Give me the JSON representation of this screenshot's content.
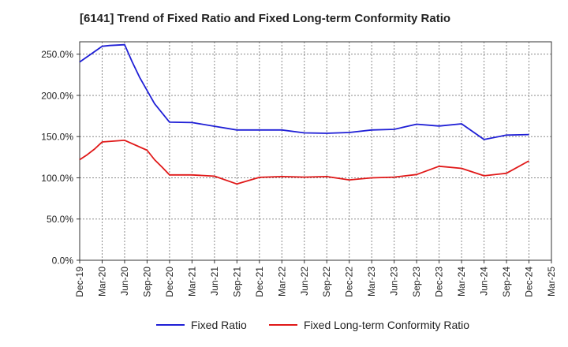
{
  "title": "[6141]  Trend of Fixed Ratio and Fixed Long-term Conformity Ratio",
  "chart_data": {
    "type": "line",
    "title": "[6141]  Trend of Fixed Ratio and Fixed Long-term Conformity Ratio",
    "xlabel": "",
    "ylabel": "",
    "x": [
      "Dec-19",
      "Mar-20",
      "Jun-20",
      "Sep-20",
      "Dec-20",
      "Mar-21",
      "Jun-21",
      "Sep-21",
      "Dec-21",
      "Mar-22",
      "Jun-22",
      "Sep-22",
      "Dec-22",
      "Mar-23",
      "Jun-23",
      "Sep-23",
      "Dec-23",
      "Mar-24",
      "Jun-24",
      "Sep-24",
      "Dec-24",
      "Mar-25"
    ],
    "x_tick_labels": [
      "Dec-19",
      "Mar-20",
      "Jun-20",
      "Sep-20",
      "Dec-20",
      "Mar-21",
      "Jun-21",
      "Sep-21",
      "Dec-21",
      "Mar-22",
      "Jun-22",
      "Sep-22",
      "Dec-22",
      "Mar-23",
      "Jun-23",
      "Sep-23",
      "Dec-23",
      "Mar-24",
      "Jun-24",
      "Sep-24",
      "Dec-24",
      "Mar-25"
    ],
    "y_tick_labels": [
      "0.0%",
      "50.0%",
      "100.0%",
      "150.0%",
      "200.0%",
      "250.0%"
    ],
    "ylim": [
      0,
      265
    ],
    "y_ticks": [
      0,
      50,
      100,
      150,
      200,
      250
    ],
    "grid": true,
    "legend_position": "bottom",
    "series": [
      {
        "name": "Fixed Ratio",
        "color": "#1f1fd6",
        "x": [
          "Dec-19",
          "Mar-20",
          "Apr-20",
          "Jun-20",
          "Jul-20",
          "Aug-20",
          "Sep-20",
          "Oct-20",
          "Dec-20",
          "Mar-21",
          "Jun-21",
          "Sep-21",
          "Dec-21",
          "Mar-22",
          "Jun-22",
          "Sep-22",
          "Dec-22",
          "Mar-23",
          "Jun-23",
          "Sep-23",
          "Dec-23",
          "Mar-24",
          "Jun-24",
          "Sep-24",
          "Dec-24"
        ],
        "values": [
          240.5,
          259.5,
          260.5,
          261.5,
          241.0,
          222.0,
          206.0,
          190.0,
          167.5,
          167.0,
          162.5,
          158.0,
          158.0,
          158.0,
          154.5,
          154.0,
          155.0,
          158.0,
          158.8,
          165.0,
          162.8,
          165.5,
          146.5,
          151.8,
          152.5
        ]
      },
      {
        "name": "Fixed Long-term Conformity Ratio",
        "color": "#e01818",
        "x": [
          "Dec-19",
          "Jan-20",
          "Feb-20",
          "Mar-20",
          "Jun-20",
          "Sep-20",
          "Oct-20",
          "Nov-20",
          "Dec-20",
          "Mar-21",
          "Jun-21",
          "Sep-21",
          "Dec-21",
          "Mar-22",
          "Jun-22",
          "Sep-22",
          "Dec-22",
          "Mar-23",
          "Jun-23",
          "Sep-23",
          "Dec-23",
          "Mar-24",
          "Jun-24",
          "Sep-24",
          "Dec-24"
        ],
        "values": [
          122.0,
          128.0,
          135.0,
          143.5,
          145.5,
          133.5,
          122.0,
          113.0,
          103.5,
          103.5,
          102.0,
          92.5,
          100.5,
          101.5,
          100.8,
          101.5,
          97.5,
          100.0,
          100.8,
          104.0,
          114.0,
          111.5,
          102.5,
          105.5,
          120.5
        ]
      }
    ]
  }
}
